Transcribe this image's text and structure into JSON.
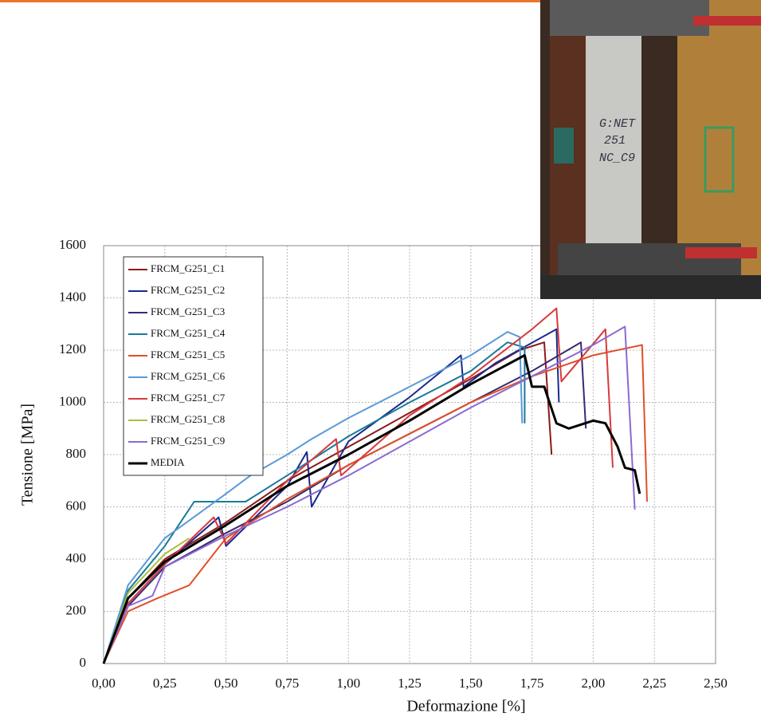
{
  "chart_data": {
    "type": "line",
    "xlabel": "Deformazione [%]",
    "ylabel": "Tensione [MPa]",
    "xlim": [
      0,
      2.5
    ],
    "ylim": [
      0,
      1600
    ],
    "xticks": [
      {
        "value": 0,
        "label": "0,00"
      },
      {
        "value": 0.25,
        "label": "0,25"
      },
      {
        "value": 0.5,
        "label": "0,50"
      },
      {
        "value": 0.75,
        "label": "0,75"
      },
      {
        "value": 1,
        "label": "1,00"
      },
      {
        "value": 1.25,
        "label": "1,25"
      },
      {
        "value": 1.5,
        "label": "1,50"
      },
      {
        "value": 1.75,
        "label": "1,75"
      },
      {
        "value": 2,
        "label": "2,00"
      },
      {
        "value": 2.25,
        "label": "2,25"
      },
      {
        "value": 2.5,
        "label": "2,50"
      }
    ],
    "yticks": [
      0,
      200,
      400,
      600,
      800,
      1000,
      1200,
      1400,
      1600
    ],
    "grid": true,
    "legend": "upper left",
    "series": [
      {
        "name": "FRCM_G251_C1",
        "color": "#8b1a1a",
        "x": [
          0,
          0.1,
          0.25,
          0.5,
          0.75,
          1.0,
          1.25,
          1.5,
          1.7,
          1.8,
          1.83
        ],
        "values": [
          0,
          250,
          400,
          540,
          700,
          830,
          960,
          1090,
          1200,
          1230,
          800
        ]
      },
      {
        "name": "FRCM_G251_C2",
        "color": "#1a2a8c",
        "x": [
          0,
          0.1,
          0.25,
          0.47,
          0.5,
          0.75,
          0.83,
          0.85,
          1.0,
          1.25,
          1.46,
          1.47,
          1.6,
          1.85,
          1.86
        ],
        "values": [
          0,
          230,
          380,
          560,
          450,
          680,
          810,
          600,
          850,
          1020,
          1180,
          1060,
          1150,
          1280,
          1000
        ]
      },
      {
        "name": "FRCM_G251_C3",
        "color": "#3a2a70",
        "x": [
          0,
          0.1,
          0.25,
          0.5,
          0.75,
          1.0,
          1.25,
          1.5,
          1.75,
          1.95,
          1.97
        ],
        "values": [
          0,
          220,
          370,
          500,
          620,
          760,
          880,
          1000,
          1120,
          1230,
          900
        ]
      },
      {
        "name": "FRCM_G251_C4",
        "color": "#1a7a9a",
        "x": [
          0,
          0.1,
          0.25,
          0.37,
          0.58,
          0.75,
          1.0,
          1.25,
          1.5,
          1.65,
          1.72,
          1.72
        ],
        "values": [
          0,
          280,
          450,
          620,
          620,
          720,
          870,
          1000,
          1120,
          1230,
          1210,
          920
        ]
      },
      {
        "name": "FRCM_G251_C5",
        "color": "#e0502a",
        "x": [
          0,
          0.1,
          0.22,
          0.35,
          0.5,
          0.75,
          1.0,
          1.25,
          1.5,
          1.75,
          2.0,
          2.2,
          2.22
        ],
        "values": [
          0,
          200,
          250,
          300,
          480,
          630,
          760,
          880,
          1000,
          1100,
          1180,
          1220,
          620
        ]
      },
      {
        "name": "FRCM_G251_C6",
        "color": "#5a9ad8",
        "x": [
          0,
          0.1,
          0.25,
          0.5,
          0.6,
          0.75,
          0.85,
          1.0,
          1.25,
          1.5,
          1.65,
          1.7,
          1.71
        ],
        "values": [
          0,
          300,
          480,
          650,
          720,
          800,
          860,
          940,
          1060,
          1180,
          1270,
          1250,
          920
        ]
      },
      {
        "name": "FRCM_G251_C7",
        "color": "#d83a3a",
        "x": [
          0,
          0.1,
          0.25,
          0.45,
          0.5,
          0.75,
          0.95,
          0.97,
          1.25,
          1.5,
          1.75,
          1.85,
          1.87,
          2.05,
          2.08
        ],
        "values": [
          0,
          230,
          380,
          560,
          460,
          700,
          860,
          720,
          950,
          1100,
          1280,
          1360,
          1080,
          1280,
          750
        ]
      },
      {
        "name": "FRCM_G251_C8",
        "color": "#a8c040",
        "x": [
          0,
          0.1,
          0.25,
          0.35
        ],
        "values": [
          0,
          270,
          420,
          480
        ]
      },
      {
        "name": "FRCM_G251_C9",
        "color": "#8a6ad0",
        "x": [
          0,
          0.1,
          0.2,
          0.25,
          0.5,
          0.75,
          1.0,
          1.25,
          1.5,
          1.75,
          2.0,
          2.13,
          2.17
        ],
        "values": [
          0,
          220,
          260,
          370,
          490,
          600,
          720,
          850,
          980,
          1100,
          1220,
          1290,
          590
        ]
      },
      {
        "name": "MEDIA",
        "color": "#000000",
        "x": [
          0,
          0.1,
          0.25,
          0.5,
          0.75,
          1.0,
          1.25,
          1.5,
          1.72,
          1.75,
          1.8,
          1.85,
          1.9,
          2.0,
          2.05,
          2.1,
          2.13,
          2.17,
          2.19
        ],
        "values": [
          0,
          250,
          390,
          530,
          680,
          800,
          930,
          1070,
          1180,
          1060,
          1060,
          920,
          900,
          930,
          920,
          830,
          750,
          740,
          650
        ]
      }
    ]
  },
  "photo": {
    "label_lines": [
      "G:NET",
      "251",
      "NC_C9"
    ]
  }
}
